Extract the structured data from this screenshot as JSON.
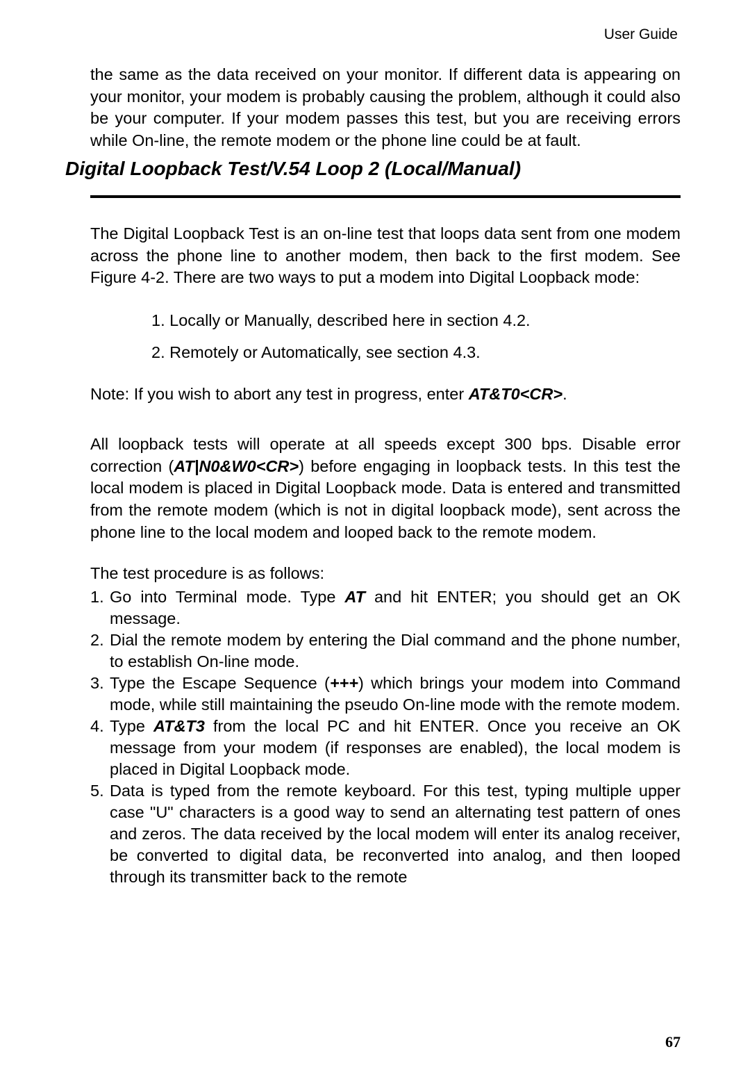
{
  "header": {
    "right": "User Guide"
  },
  "intro_para": "the same as the data received on your monitor.  If different data is appearing on your monitor, your modem is probably causing the problem, although it could also be your computer. If your modem passes this test, but you are receiving errors while On-line, the remote modem or the phone line could be at fault.",
  "section_title": "Digital Loopback Test/V.54 Loop 2 (Local/Manual)",
  "desc_para": "The Digital Loopback Test is an on-line test that loops data sent from one modem across the phone line to another modem, then back to the first modem.  See Figure 4-2. There are two ways to put a modem into Digital Loopback mode:",
  "mode_list": {
    "i1": "1.  Locally or Manually, described here in section 4.2.",
    "i2": "2.  Remotely or Automatically, see section 4.3."
  },
  "note": {
    "prefix": "Note:  If you wish to abort any test in progress, enter ",
    "cmd": "AT&T0<CR>",
    "suffix": "."
  },
  "detail_para": {
    "p1a": "All loopback tests will operate at all speeds except 300 bps. Disable error correction (",
    "p1cmd": "AT|N0&W0<CR>",
    "p1b": ") before engaging in loopback tests.  In this test the local modem is placed in Digital Loopback mode.  Data is entered and transmitted from the remote modem (which is not in digital loopback mode), sent across the phone line to the local modem and looped back to the remote modem."
  },
  "proc_intro": "The test procedure is as follows:",
  "proc": {
    "s1": {
      "num": "1.",
      "a": "Go into Terminal mode. Type ",
      "cmd": "AT",
      "b": " and hit ENTER; you should get an OK message."
    },
    "s2": {
      "num": "2.",
      "a": "Dial the remote modem by entering the Dial command and the phone number, to establish On-line mode."
    },
    "s3": {
      "num": "3.",
      "a": "Type the Escape Sequence (",
      "cmd": "+++",
      "b": ") which brings your modem into Command mode, while still maintaining the pseudo On-line mode with the remote modem."
    },
    "s4": {
      "num": "4.",
      "a": "Type ",
      "cmd": "AT&T3",
      "b": " from the local PC and hit ENTER.  Once you receive an OK message from your modem (if responses are enabled), the local modem is placed in Digital Loopback mode."
    },
    "s5": {
      "num": "5.",
      "a": "Data is typed from the remote keyboard. For this test, typing multiple upper case \"U\" characters is a good way to send an alternating test pattern of ones and zeros. The data received by the local modem will enter its analog receiver, be converted to digital data, be reconverted into analog, and then looped through its transmitter back to the remote"
    }
  },
  "page_number": "67"
}
